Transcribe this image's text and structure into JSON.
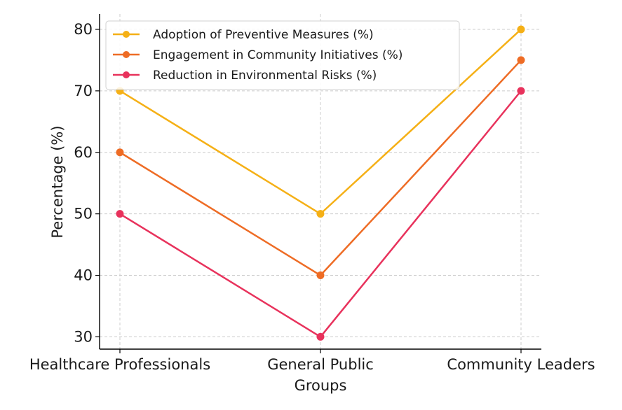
{
  "chart_data": {
    "type": "line",
    "title": "",
    "xlabel": "Groups",
    "ylabel": "Percentage (%)",
    "categories": [
      "Healthcare Professionals",
      "General Public",
      "Community Leaders"
    ],
    "ylim": [
      28,
      82.5
    ],
    "yticks": [
      30,
      40,
      50,
      60,
      70,
      80
    ],
    "grid": true,
    "legend_position": "top-left",
    "markers": "circle",
    "series": [
      {
        "name": "Adoption of Preventive Measures (%)",
        "values": [
          70,
          50,
          80
        ],
        "color": "#f5b016"
      },
      {
        "name": "Engagement in Community Initiatives (%)",
        "values": [
          60,
          40,
          75
        ],
        "color": "#ee6c25"
      },
      {
        "name": "Reduction in Environmental Risks (%)",
        "values": [
          50,
          30,
          70
        ],
        "color": "#e8325c"
      }
    ]
  }
}
